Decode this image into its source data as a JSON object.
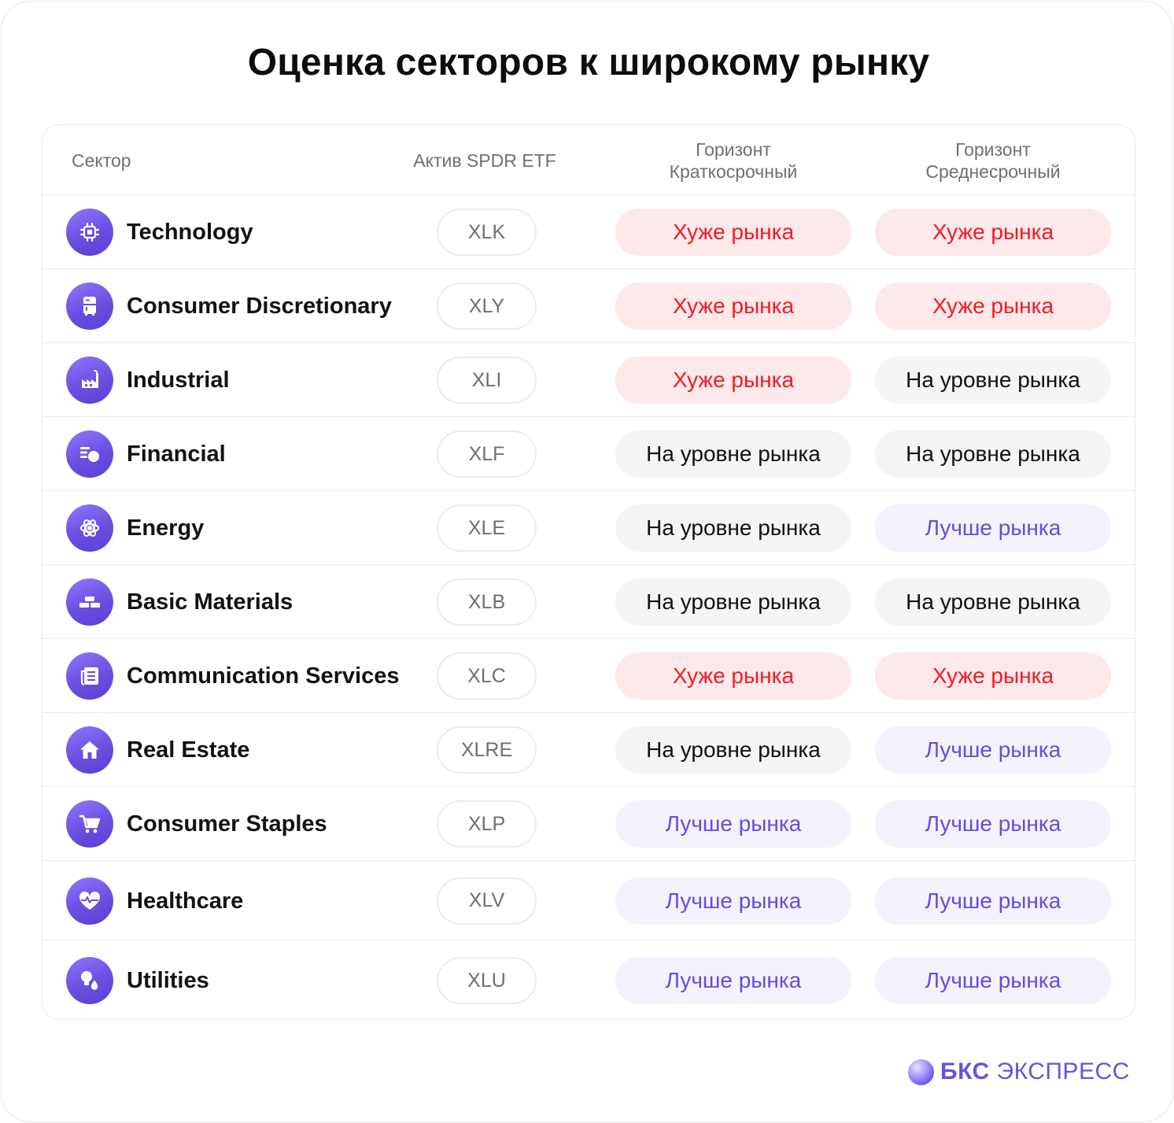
{
  "title": "Оценка секторов к широкому рынку",
  "table": {
    "headers": {
      "sector": "Сектор",
      "etf": "Актив SPDR ETF",
      "short_line1": "Горизонт",
      "short_line2": "Краткосрочный",
      "mid_line1": "Горизонт",
      "mid_line2": "Среднесрочный"
    },
    "rows": [
      {
        "sector": "Technology",
        "etf": "XLK",
        "short": "Хуже рынка",
        "mid": "Хуже рынка",
        "icon": "chip-icon"
      },
      {
        "sector": "Consumer Discretionary",
        "etf": "XLY",
        "short": "Хуже рынка",
        "mid": "Хуже рынка",
        "icon": "appliance-icon"
      },
      {
        "sector": "Industrial",
        "etf": "XLI",
        "short": "Хуже рынка",
        "mid": "На уровне рынка",
        "icon": "factory-icon"
      },
      {
        "sector": "Financial",
        "etf": "XLF",
        "short": "На уровне рынка",
        "mid": "На уровне рынка",
        "icon": "coins-icon"
      },
      {
        "sector": "Energy",
        "etf": "XLE",
        "short": "На уровне рынка",
        "mid": "Лучше рынка",
        "icon": "atom-icon"
      },
      {
        "sector": "Basic Materials",
        "etf": "XLB",
        "short": "На уровне рынка",
        "mid": "На уровне рынка",
        "icon": "bricks-icon"
      },
      {
        "sector": "Communication Services",
        "etf": "XLC",
        "short": "Хуже рынка",
        "mid": "Хуже рынка",
        "icon": "newspaper-icon"
      },
      {
        "sector": "Real Estate",
        "etf": "XLRE",
        "short": "На уровне рынка",
        "mid": "Лучше рынка",
        "icon": "house-icon"
      },
      {
        "sector": "Consumer Staples",
        "etf": "XLP",
        "short": "Лучше рынка",
        "mid": "Лучше рынка",
        "icon": "cart-icon"
      },
      {
        "sector": "Healthcare",
        "etf": "XLV",
        "short": "Лучше рынка",
        "mid": "Лучше рынка",
        "icon": "heart-pulse-icon"
      },
      {
        "sector": "Utilities",
        "etf": "XLU",
        "short": "Лучше рынка",
        "mid": "Лучше рынка",
        "icon": "bulb-drop-icon"
      }
    ]
  },
  "status_colors": {
    "Хуже рынка": "#ef1d25",
    "На уровне рынка": "#111111",
    "Лучше рынка": "#6a4bd8"
  },
  "brand": {
    "bold": "БКС",
    "regular": "ЭКСПРЕСС",
    "color": "#6a52de"
  }
}
